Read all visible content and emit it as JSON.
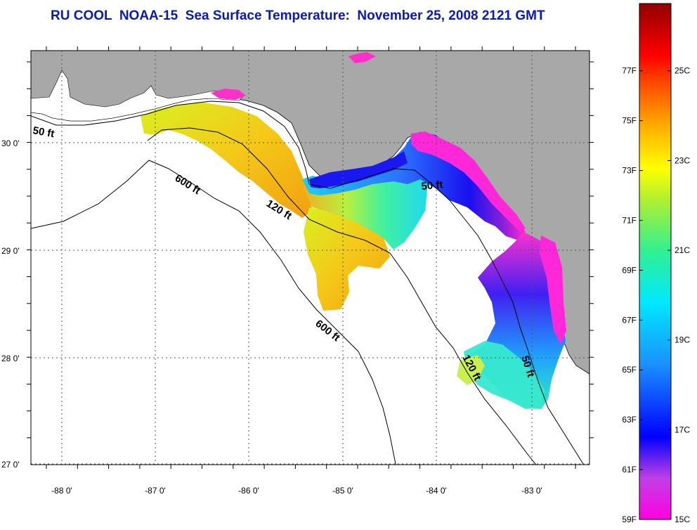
{
  "title": "RU COOL  NOAA-15  Sea Surface Temperature:  November 25, 2008 2121 GMT",
  "map": {
    "lon_labels": [
      "-88 0'",
      "-87 0'",
      "-86 0'",
      "-85 0'",
      "-84 0'",
      "-83 0'"
    ],
    "lat_labels": [
      "30 0'",
      "29 0'",
      "28 0'",
      "27 0'"
    ],
    "contour_labels": [
      "50 ft",
      "600 ft",
      "120 ft",
      "50 ft",
      "600 ft",
      "120 ft",
      "50 ft"
    ],
    "colors": {
      "land": "#a8a8a8",
      "ocean_nodata": "#ffffff",
      "grid": "#555555"
    }
  },
  "colorbar": {
    "fahrenheit_labels": [
      "77F",
      "75F",
      "73F",
      "71F",
      "69F",
      "67F",
      "65F",
      "63F",
      "61F",
      "59F"
    ],
    "celsius_labels": [
      "25C",
      "23C",
      "21C",
      "19C",
      "17C",
      "15C"
    ],
    "range_c": [
      15,
      26.5
    ]
  }
}
